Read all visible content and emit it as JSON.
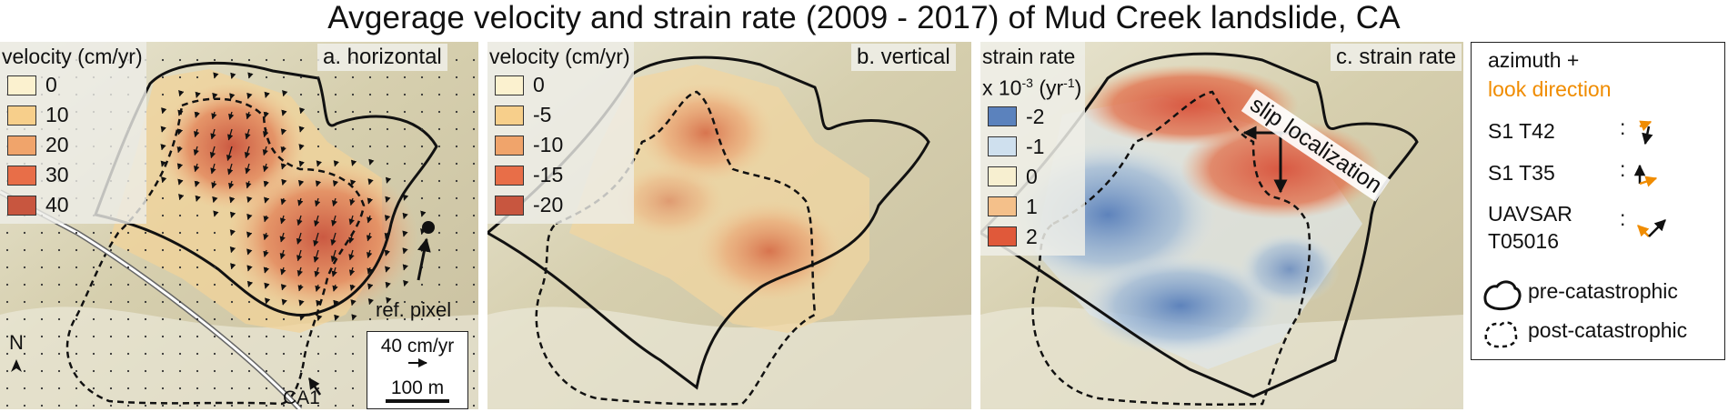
{
  "title": "Avgerage velocity and strain rate (2009 - 2017) of Mud Creek landslide, CA",
  "panels": {
    "a": {
      "label": "a. horizontal",
      "legend_title": "velocity (cm/yr)",
      "legend_values": [
        "0",
        "10",
        "20",
        "30",
        "40"
      ],
      "legend_colors": [
        "#fbf1cf",
        "#f7cf8b",
        "#f0a46b",
        "#e86e48",
        "#c8563f"
      ],
      "ref_pixel": "ref. pixel",
      "north": "N",
      "road": "CA1",
      "scale_arrow": "40 cm/yr",
      "scale_bar": "100 m"
    },
    "b": {
      "label": "b. vertical",
      "legend_title": "velocity (cm/yr)",
      "legend_values": [
        "0",
        "-5",
        "-10",
        "-15",
        "-20"
      ],
      "legend_colors": [
        "#fbf1cf",
        "#f7cf8b",
        "#f0a46b",
        "#e86e48",
        "#c8563f"
      ]
    },
    "c": {
      "label": "c. strain rate",
      "legend_title_line1": "strain rate",
      "legend_title_line2_prefix": "x 10",
      "legend_title_exp": "-3",
      "legend_title_line2_mid": " (yr",
      "legend_title_exp2": "-1",
      "legend_title_line2_suffix": ")",
      "legend_values": [
        "-2",
        "-1",
        "0",
        "1",
        "2"
      ],
      "legend_colors": [
        "#5b82bd",
        "#cfe0ee",
        "#f7efd0",
        "#f4c08a",
        "#e0593a"
      ],
      "annotation": "slip localization"
    }
  },
  "key": {
    "azimuth": "azimuth +",
    "look": "look direction",
    "tracks": [
      "S1 T42",
      "S1 T35",
      "UAVSAR",
      "T05016"
    ],
    "colon": ":",
    "pre": "pre-catastrophic",
    "post": "post-catastrophic",
    "colors": {
      "azimuth": "#111111",
      "look": "#f08c00"
    }
  }
}
